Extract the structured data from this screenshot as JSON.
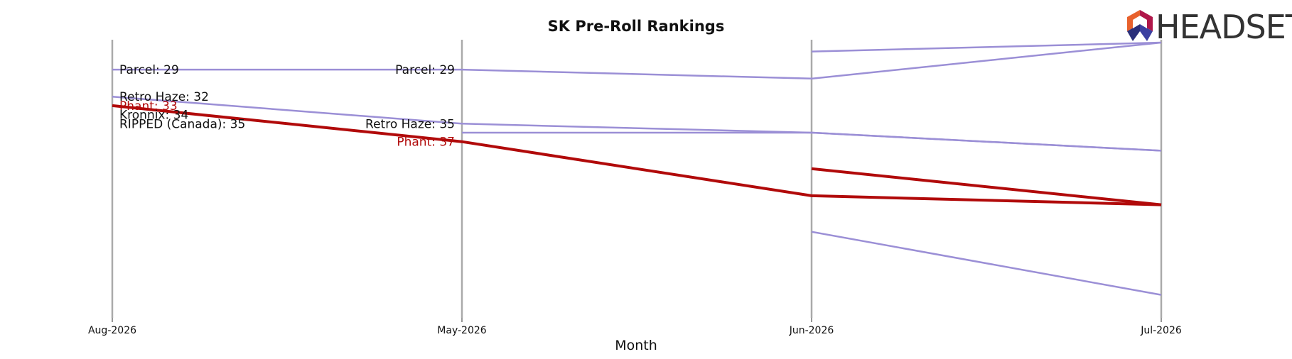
{
  "brand": {
    "name": "HEADSET",
    "logo_icon": "headset-hexagon-logo-icon"
  },
  "chart_data": {
    "type": "line",
    "title": "SK Pre-Roll Rankings",
    "xlabel": "Month",
    "ylabel": "",
    "categories": [
      "Aug-2026",
      "May-2026",
      "Jun-2026",
      "Jul-2026"
    ],
    "y_inverted": true,
    "ylim": [
      26,
      56
    ],
    "grid": "vertical lines at each month",
    "legend": "none (inline labels)",
    "colors": {
      "default": "#9b8fd6",
      "highlight": "#b10a0a",
      "axis_line": "#aaaaaa"
    },
    "series": [
      {
        "name": "Parcel",
        "highlight": false,
        "values": [
          29,
          29,
          30,
          26
        ],
        "label_points": [
          0,
          1
        ],
        "labels": [
          "Parcel: 29",
          "Parcel: 29"
        ]
      },
      {
        "name": "Retro Haze",
        "highlight": false,
        "values": [
          32,
          35,
          36,
          38
        ],
        "label_points": [
          0,
          1
        ],
        "labels": [
          "Retro Haze: 32",
          "Retro Haze: 35"
        ]
      },
      {
        "name": "Phant",
        "highlight": true,
        "values": [
          33,
          37,
          43,
          44
        ],
        "label_points": [
          0,
          1
        ],
        "labels": [
          "Phant: 33",
          "Phant: 37"
        ]
      },
      {
        "name": "Kronnix",
        "highlight": false,
        "values": [
          34,
          null,
          null,
          null
        ],
        "label_points": [
          0
        ],
        "labels": [
          "Kronnix: 34"
        ]
      },
      {
        "name": "RIPPED (Canada)",
        "highlight": false,
        "values": [
          35,
          null,
          47,
          54
        ],
        "label_points": [
          0
        ],
        "labels": [
          "RIPPED (Canada): 35"
        ]
      },
      {
        "name": "",
        "highlight": false,
        "values": [
          null,
          null,
          27,
          26
        ],
        "label_points": [],
        "labels": []
      },
      {
        "name": "",
        "highlight": false,
        "values": [
          null,
          36,
          36,
          38
        ],
        "label_points": [],
        "labels": []
      },
      {
        "name": "",
        "highlight": true,
        "values": [
          null,
          null,
          40,
          44
        ],
        "label_points": [],
        "labels": []
      }
    ]
  }
}
